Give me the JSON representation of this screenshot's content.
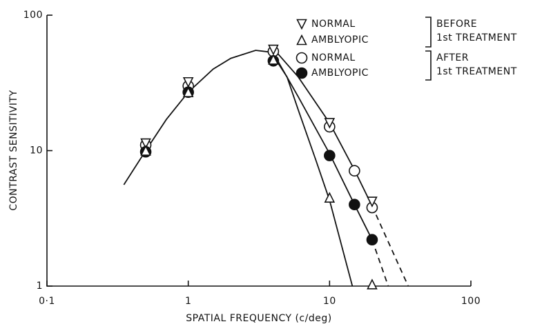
{
  "chart_data": {
    "type": "scatter",
    "x_label": "SPATIAL FREQUENCY (c/deg)",
    "y_label": "CONTRAST SENSITIVITY",
    "log_x": true,
    "log_y": true,
    "xlim": [
      0.1,
      100
    ],
    "ylim": [
      1,
      100
    ],
    "xticks": [
      {
        "value": 0.1,
        "label": "0·1"
      },
      1,
      10,
      100
    ],
    "yticks": [
      1,
      10,
      100
    ],
    "series": [
      {
        "name": "NORMAL",
        "marker": "triangle-down",
        "filled": false,
        "color": "#111",
        "x": [
          0.5,
          1,
          4,
          10,
          20
        ],
        "values": [
          11.3,
          32,
          55.6,
          16,
          4.2
        ]
      },
      {
        "name": "AMBLYOPIC",
        "marker": "triangle-up",
        "filled": false,
        "color": "#111",
        "x": [
          0.5,
          1,
          4,
          10,
          20
        ],
        "values": [
          10,
          27,
          47,
          4.5,
          1.03
        ]
      },
      {
        "name": "NORMAL",
        "marker": "circle",
        "filled": false,
        "color": "#111",
        "x": [
          0.5,
          1,
          4,
          10,
          15,
          20
        ],
        "values": [
          11,
          30,
          54,
          15,
          7.1,
          3.8
        ]
      },
      {
        "name": "AMBLYOPIC",
        "marker": "circle",
        "filled": true,
        "color": "#111",
        "x": [
          0.5,
          1,
          4,
          10,
          15,
          20
        ],
        "values": [
          9.8,
          27,
          46,
          9.2,
          4,
          2.2
        ]
      }
    ],
    "legend_groups": [
      {
        "lines": [
          "BEFORE",
          "1st TREATMENT"
        ],
        "series": [
          0,
          1
        ]
      },
      {
        "lines": [
          "AFTER",
          "1st TREATMENT"
        ],
        "series": [
          2,
          3
        ]
      }
    ],
    "curves": [
      {
        "dashed": false,
        "x": [
          0.35,
          0.5,
          0.7,
          1,
          1.5,
          2,
          3,
          4
        ],
        "values": [
          5.6,
          10,
          17,
          27,
          40,
          48,
          55,
          53
        ]
      },
      {
        "dashed": false,
        "x": [
          4,
          5,
          6,
          8,
          10,
          14.5
        ],
        "values": [
          50,
          35,
          20,
          8.5,
          4.3,
          1
        ]
      },
      {
        "dashed": false,
        "x": [
          4.2,
          6,
          10,
          15,
          20
        ],
        "values": [
          48,
          25,
          9.5,
          4,
          2.2
        ]
      },
      {
        "dashed": true,
        "x": [
          20,
          26
        ],
        "values": [
          2.2,
          1
        ]
      },
      {
        "dashed": false,
        "x": [
          4.3,
          6,
          10,
          15,
          20
        ],
        "values": [
          52,
          35,
          16,
          7.2,
          3.9
        ]
      },
      {
        "dashed": true,
        "x": [
          20,
          36
        ],
        "values": [
          3.9,
          1
        ]
      }
    ]
  }
}
